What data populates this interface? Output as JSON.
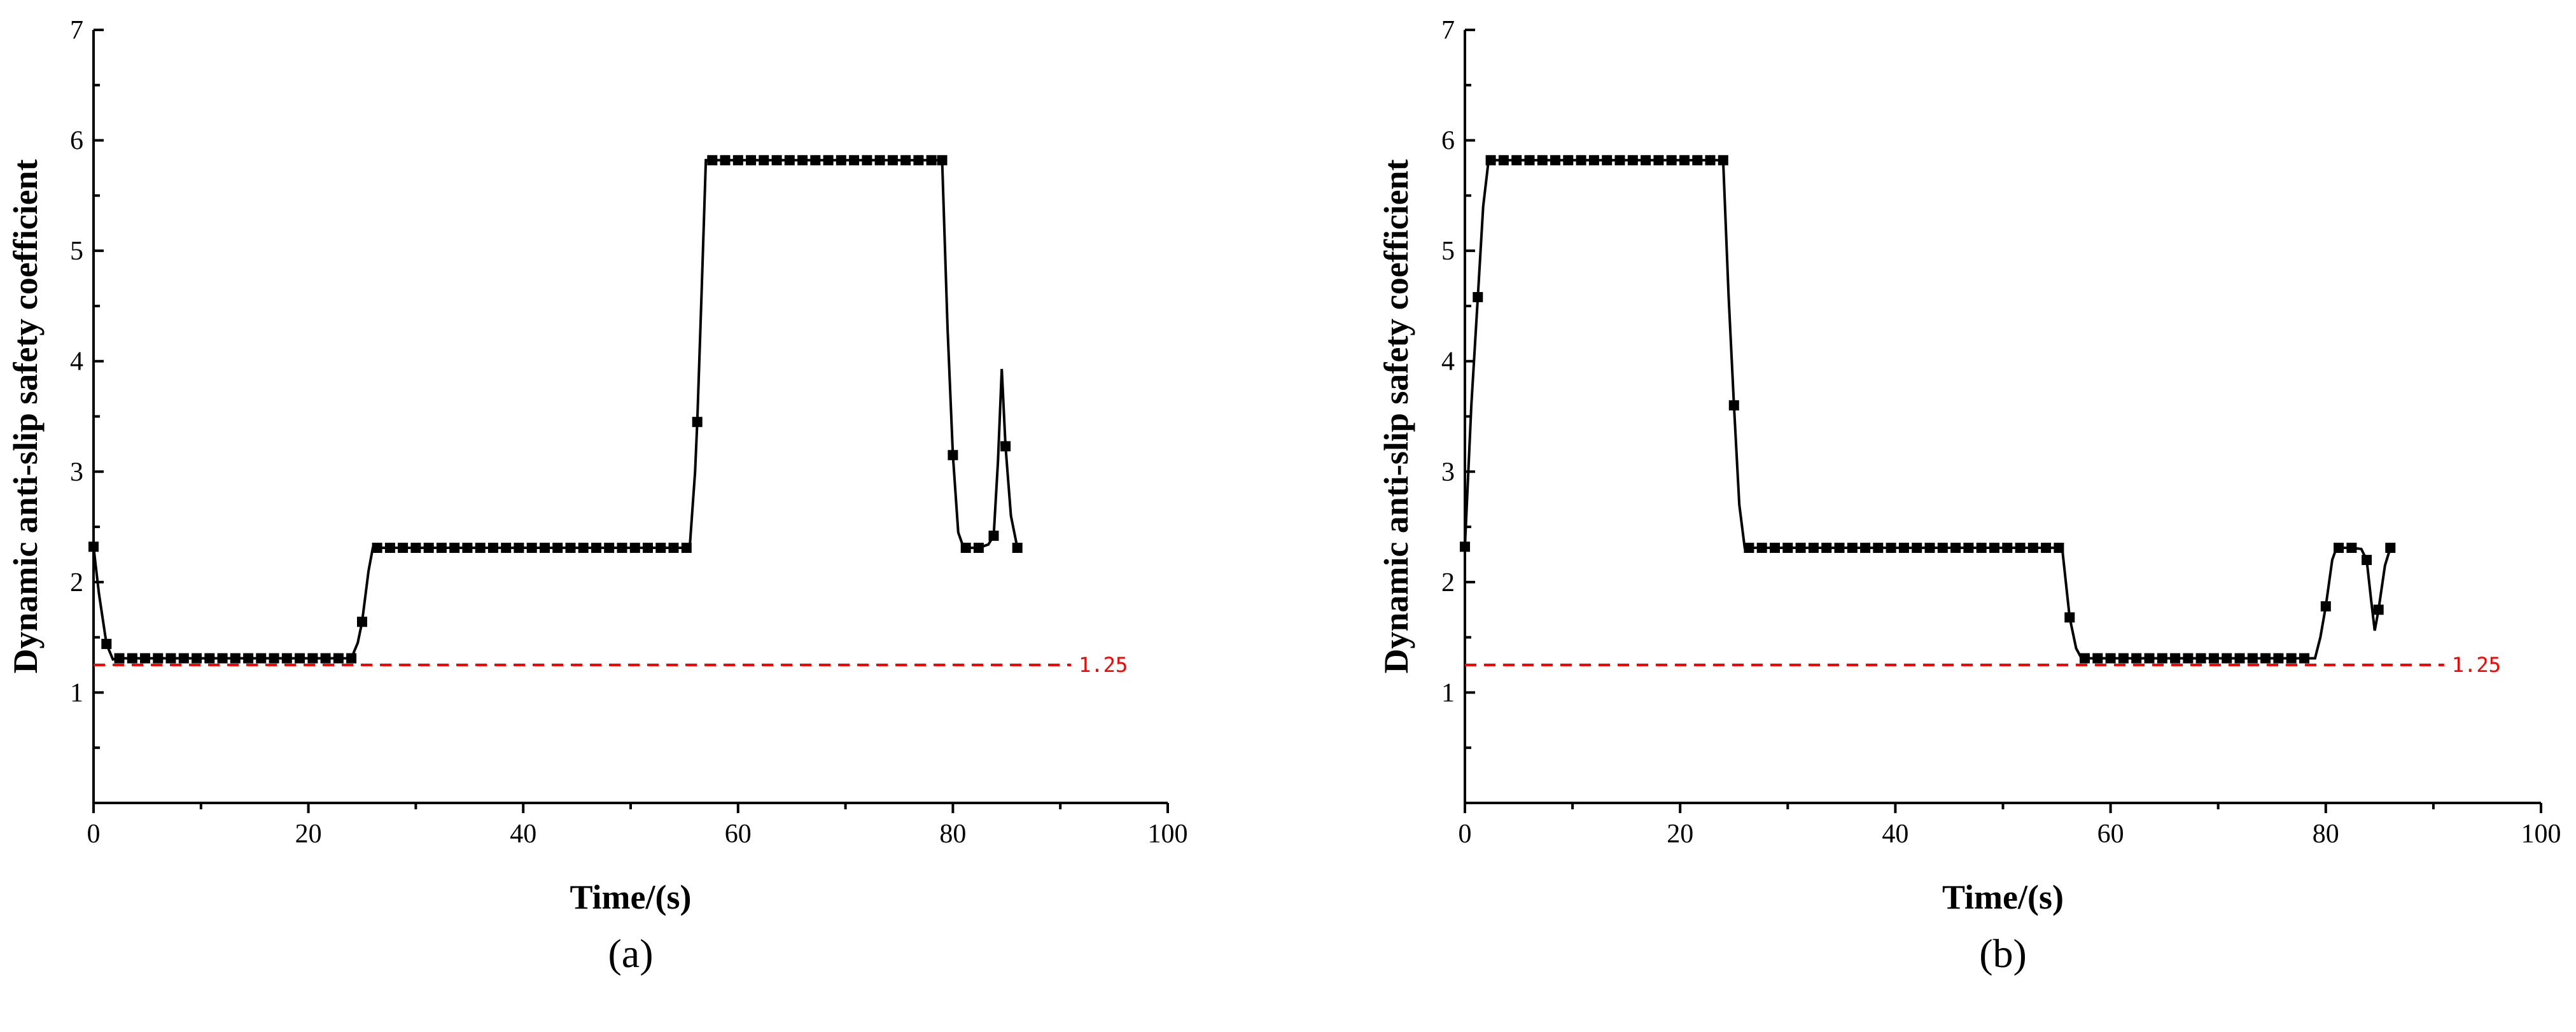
{
  "chart_data": [
    {
      "type": "line",
      "panel_label": "(a)",
      "xlabel": "Time/(s)",
      "ylabel": "Dynamic anti-slip safety coefficient",
      "xlim": [
        0,
        100
      ],
      "ylim": [
        0,
        7
      ],
      "xticks": [
        0,
        20,
        40,
        60,
        80,
        100
      ],
      "yticks": [
        1,
        2,
        3,
        4,
        5,
        6,
        7
      ],
      "grid": false,
      "reference_line": {
        "y": 1.25,
        "label": "1.25",
        "color": "#ff0000",
        "style": "dashed",
        "x_end": 91
      },
      "series": [
        {
          "markers": [
            [
              0,
              2.32
            ],
            [
              1.2,
              1.44
            ],
            [
              2.4,
              1.31
            ],
            [
              3.6,
              1.31
            ],
            [
              4.8,
              1.31
            ],
            [
              6,
              1.31
            ],
            [
              7.2,
              1.31
            ],
            [
              8.4,
              1.31
            ],
            [
              9.6,
              1.31
            ],
            [
              10.8,
              1.31
            ],
            [
              12,
              1.31
            ],
            [
              13.2,
              1.31
            ],
            [
              14.4,
              1.31
            ],
            [
              15.6,
              1.31
            ],
            [
              16.8,
              1.31
            ],
            [
              18,
              1.31
            ],
            [
              19.2,
              1.31
            ],
            [
              20.4,
              1.31
            ],
            [
              21.6,
              1.31
            ],
            [
              22.8,
              1.31
            ],
            [
              24,
              1.31
            ],
            [
              25,
              1.64
            ],
            [
              26.4,
              2.31
            ],
            [
              27.6,
              2.31
            ],
            [
              28.8,
              2.31
            ],
            [
              30,
              2.31
            ],
            [
              31.2,
              2.31
            ],
            [
              32.4,
              2.31
            ],
            [
              33.6,
              2.31
            ],
            [
              34.8,
              2.31
            ],
            [
              36,
              2.31
            ],
            [
              37.2,
              2.31
            ],
            [
              38.4,
              2.31
            ],
            [
              39.6,
              2.31
            ],
            [
              40.8,
              2.31
            ],
            [
              42,
              2.31
            ],
            [
              43.2,
              2.31
            ],
            [
              44.4,
              2.31
            ],
            [
              45.6,
              2.31
            ],
            [
              46.8,
              2.31
            ],
            [
              48,
              2.31
            ],
            [
              49.2,
              2.31
            ],
            [
              50.4,
              2.31
            ],
            [
              51.6,
              2.31
            ],
            [
              52.8,
              2.31
            ],
            [
              54,
              2.31
            ],
            [
              55.2,
              2.31
            ],
            [
              56.2,
              3.45
            ],
            [
              57.6,
              5.82
            ],
            [
              58.8,
              5.82
            ],
            [
              60,
              5.82
            ],
            [
              61.2,
              5.82
            ],
            [
              62.4,
              5.82
            ],
            [
              63.6,
              5.82
            ],
            [
              64.8,
              5.82
            ],
            [
              66,
              5.82
            ],
            [
              67.2,
              5.82
            ],
            [
              68.4,
              5.82
            ],
            [
              69.6,
              5.82
            ],
            [
              70.8,
              5.82
            ],
            [
              72,
              5.82
            ],
            [
              73.2,
              5.82
            ],
            [
              74.4,
              5.82
            ],
            [
              75.6,
              5.82
            ],
            [
              76.8,
              5.82
            ],
            [
              78,
              5.82
            ],
            [
              79,
              5.82
            ],
            [
              80,
              3.15
            ],
            [
              81.2,
              2.31
            ],
            [
              82.4,
              2.31
            ],
            [
              83.8,
              2.42
            ],
            [
              84.9,
              3.23
            ],
            [
              86,
              2.31
            ]
          ],
          "curve": [
            [
              0,
              2.32
            ],
            [
              0.5,
              1.9
            ],
            [
              1.2,
              1.44
            ],
            [
              1.8,
              1.3
            ],
            [
              2.4,
              1.31
            ],
            [
              24,
              1.31
            ],
            [
              24.6,
              1.45
            ],
            [
              25,
              1.64
            ],
            [
              25.6,
              2.1
            ],
            [
              26,
              2.31
            ],
            [
              55.5,
              2.31
            ],
            [
              56,
              3.0
            ],
            [
              56.2,
              3.45
            ],
            [
              56.6,
              4.6
            ],
            [
              57,
              5.82
            ],
            [
              79,
              5.82
            ],
            [
              79.5,
              4.3
            ],
            [
              80,
              3.15
            ],
            [
              80.5,
              2.45
            ],
            [
              81,
              2.31
            ],
            [
              82.4,
              2.31
            ],
            [
              83.3,
              2.34
            ],
            [
              83.8,
              2.42
            ],
            [
              84.2,
              3.1
            ],
            [
              84.55,
              3.93
            ],
            [
              84.9,
              3.23
            ],
            [
              85.4,
              2.6
            ],
            [
              86,
              2.31
            ]
          ]
        }
      ]
    },
    {
      "type": "line",
      "panel_label": "(b)",
      "xlabel": "Time/(s)",
      "ylabel": "Dynamic anti-slip safety coefficient",
      "xlim": [
        0,
        100
      ],
      "ylim": [
        0,
        7
      ],
      "xticks": [
        0,
        20,
        40,
        60,
        80,
        100
      ],
      "yticks": [
        1,
        2,
        3,
        4,
        5,
        6,
        7
      ],
      "grid": false,
      "reference_line": {
        "y": 1.25,
        "label": "1.25",
        "color": "#ff0000",
        "style": "dashed",
        "x_end": 91
      },
      "series": [
        {
          "markers": [
            [
              0,
              2.32
            ],
            [
              1.2,
              4.58
            ],
            [
              2.4,
              5.82
            ],
            [
              3.6,
              5.82
            ],
            [
              4.8,
              5.82
            ],
            [
              6,
              5.82
            ],
            [
              7.2,
              5.82
            ],
            [
              8.4,
              5.82
            ],
            [
              9.6,
              5.82
            ],
            [
              10.8,
              5.82
            ],
            [
              12,
              5.82
            ],
            [
              13.2,
              5.82
            ],
            [
              14.4,
              5.82
            ],
            [
              15.6,
              5.82
            ],
            [
              16.8,
              5.82
            ],
            [
              18,
              5.82
            ],
            [
              19.2,
              5.82
            ],
            [
              20.4,
              5.82
            ],
            [
              21.6,
              5.82
            ],
            [
              22.8,
              5.82
            ],
            [
              24,
              5.82
            ],
            [
              25,
              3.6
            ],
            [
              26.4,
              2.31
            ],
            [
              27.6,
              2.31
            ],
            [
              28.8,
              2.31
            ],
            [
              30,
              2.31
            ],
            [
              31.2,
              2.31
            ],
            [
              32.4,
              2.31
            ],
            [
              33.6,
              2.31
            ],
            [
              34.8,
              2.31
            ],
            [
              36,
              2.31
            ],
            [
              37.2,
              2.31
            ],
            [
              38.4,
              2.31
            ],
            [
              39.6,
              2.31
            ],
            [
              40.8,
              2.31
            ],
            [
              42,
              2.31
            ],
            [
              43.2,
              2.31
            ],
            [
              44.4,
              2.31
            ],
            [
              45.6,
              2.31
            ],
            [
              46.8,
              2.31
            ],
            [
              48,
              2.31
            ],
            [
              49.2,
              2.31
            ],
            [
              50.4,
              2.31
            ],
            [
              51.6,
              2.31
            ],
            [
              52.8,
              2.31
            ],
            [
              54,
              2.31
            ],
            [
              55.2,
              2.31
            ],
            [
              56.2,
              1.68
            ],
            [
              57.6,
              1.31
            ],
            [
              58.8,
              1.31
            ],
            [
              60,
              1.31
            ],
            [
              61.2,
              1.31
            ],
            [
              62.4,
              1.31
            ],
            [
              63.6,
              1.31
            ],
            [
              64.8,
              1.31
            ],
            [
              66,
              1.31
            ],
            [
              67.2,
              1.31
            ],
            [
              68.4,
              1.31
            ],
            [
              69.6,
              1.31
            ],
            [
              70.8,
              1.31
            ],
            [
              72,
              1.31
            ],
            [
              73.2,
              1.31
            ],
            [
              74.4,
              1.31
            ],
            [
              75.6,
              1.31
            ],
            [
              76.8,
              1.31
            ],
            [
              78,
              1.31
            ],
            [
              80,
              1.78
            ],
            [
              81.2,
              2.31
            ],
            [
              82.4,
              2.31
            ],
            [
              83.8,
              2.2
            ],
            [
              84.9,
              1.75
            ],
            [
              86,
              2.31
            ]
          ],
          "curve": [
            [
              0,
              2.32
            ],
            [
              0.6,
              3.6
            ],
            [
              1.2,
              4.58
            ],
            [
              1.7,
              5.4
            ],
            [
              2.2,
              5.82
            ],
            [
              24,
              5.82
            ],
            [
              24.5,
              4.6
            ],
            [
              25,
              3.6
            ],
            [
              25.5,
              2.7
            ],
            [
              26,
              2.31
            ],
            [
              55.5,
              2.31
            ],
            [
              56.2,
              1.68
            ],
            [
              56.8,
              1.4
            ],
            [
              57.3,
              1.31
            ],
            [
              79,
              1.31
            ],
            [
              79.5,
              1.5
            ],
            [
              80,
              1.78
            ],
            [
              80.6,
              2.2
            ],
            [
              81,
              2.31
            ],
            [
              82.4,
              2.31
            ],
            [
              83.3,
              2.3
            ],
            [
              83.8,
              2.2
            ],
            [
              84.2,
              1.85
            ],
            [
              84.55,
              1.56
            ],
            [
              84.9,
              1.75
            ],
            [
              85.5,
              2.15
            ],
            [
              86,
              2.31
            ]
          ]
        }
      ]
    }
  ]
}
